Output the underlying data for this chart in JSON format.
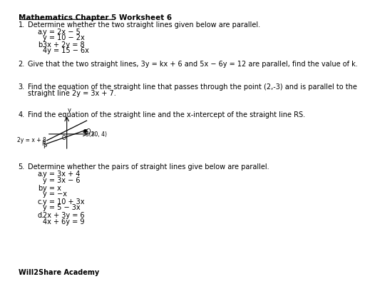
{
  "title": "Mathematics Chapter 5 Worksheet 6",
  "footer": "Will2Share Academy",
  "background_color": "#ffffff",
  "text_color": "#000000",
  "q1_text": "Determine whether the two straight lines given below are parallel.",
  "q1_a1": "y = 2x − 5",
  "q1_a2": "y = 10 − 2x",
  "q1_b1": "3x + 2y = 8",
  "q1_b2": "4y = 15 − 6x",
  "q2_text": "Give that the two straight lines, 3y = kx + 6 and 5x − 6y = 12 are parallel, find the value of k.",
  "q3_text1": "Find the equation of the straight line that passes through the point (2,-3) and is parallel to the",
  "q3_text2": "straight line 2y = 3x + 7.",
  "q4_text": "Find the equation of the straight line and the x-intercept of the straight line RS.",
  "q4_line_label": "2y = x + 8",
  "q4_point_label": "S(20, 4)",
  "q5_text": "Determine whether the pairs of straight lines give below are parallel.",
  "q5_a1": "y = 3x + 4",
  "q5_a2": "y = 3x − 6",
  "q5_b1": "y = x",
  "q5_b2": "y = −x",
  "q5_c1": "y = 10 + 3x",
  "q5_c2": "y = 5 − 3x",
  "q5_d1": "2x + 3y = 6",
  "q5_d2": "4x + 6y = 9"
}
